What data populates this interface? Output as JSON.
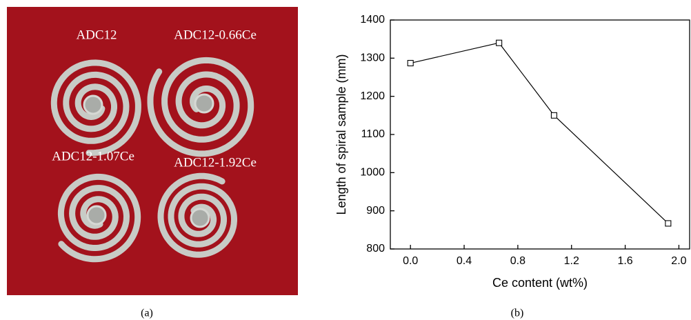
{
  "photo": {
    "labels": [
      "ADC12",
      "ADC12-0.66Ce",
      "ADC12-1.07Ce",
      "ADC12-1.92Ce"
    ],
    "caption": "(a)"
  },
  "chart_data": {
    "type": "line",
    "caption": "(b)",
    "x_label": "Ce content (wt%)",
    "y_label": "Length of spiral sample (mm)",
    "x": [
      0,
      0.66,
      1.07,
      1.92
    ],
    "series": [
      {
        "values": [
          1287,
          1340,
          1150,
          867
        ],
        "color": "#000000",
        "marker": "square"
      }
    ],
    "xlim": [
      -0.15,
      2.08
    ],
    "ylim": [
      800,
      1400
    ],
    "xticks": [
      {
        "value": 0,
        "label": "0.0"
      },
      0.4,
      0.8,
      1.2,
      1.6,
      {
        "value": 2,
        "label": "2.0"
      }
    ],
    "yticks": [
      800,
      900,
      1000,
      1100,
      1200,
      1300,
      1400
    ],
    "grid": false
  }
}
